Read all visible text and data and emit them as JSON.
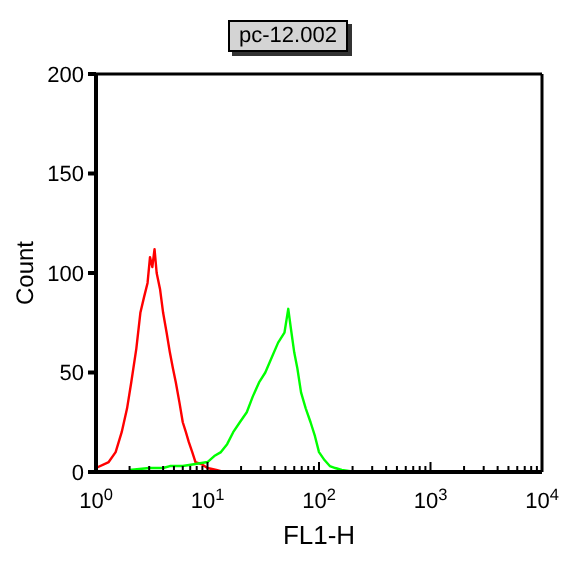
{
  "chart_data": {
    "type": "line",
    "title": "pc-12.002",
    "xlabel": "FL1-H",
    "ylabel": "Count",
    "log": "x",
    "marker": "none",
    "line_style": "solid",
    "xlim": [
      1,
      10000
    ],
    "xticks": [
      {
        "value": 1,
        "label": "10$^{0}$"
      },
      {
        "value": 2,
        "label": null
      },
      {
        "value": 3,
        "label": null
      },
      {
        "value": 4,
        "label": null
      },
      {
        "value": 5,
        "label": null
      },
      {
        "value": 6,
        "label": null
      },
      {
        "value": 7,
        "label": null
      },
      {
        "value": 8,
        "label": null
      },
      {
        "value": 9,
        "label": null
      },
      {
        "value": 10,
        "label": "10$^{1}$"
      },
      {
        "value": 20,
        "label": null
      },
      {
        "value": 30,
        "label": null
      },
      {
        "value": 40,
        "label": null
      },
      {
        "value": 50,
        "label": null
      },
      {
        "value": 60,
        "label": null
      },
      {
        "value": 70,
        "label": null
      },
      {
        "value": 80,
        "label": null
      },
      {
        "value": 90,
        "label": null
      },
      {
        "value": 100,
        "label": "10$^{2}$"
      },
      {
        "value": 200,
        "label": null
      },
      {
        "value": 300,
        "label": null
      },
      {
        "value": 400,
        "label": null
      },
      {
        "value": 500,
        "label": null
      },
      {
        "value": 600,
        "label": null
      },
      {
        "value": 700,
        "label": null
      },
      {
        "value": 800,
        "label": null
      },
      {
        "value": 900,
        "label": null
      },
      {
        "value": 1000,
        "label": "10$^{3}$"
      },
      {
        "value": 2000,
        "label": null
      },
      {
        "value": 3000,
        "label": null
      },
      {
        "value": 4000,
        "label": null
      },
      {
        "value": 5000,
        "label": null
      },
      {
        "value": 6000,
        "label": null
      },
      {
        "value": 7000,
        "label": null
      },
      {
        "value": 8000,
        "label": null
      },
      {
        "value": 9000,
        "label": null
      },
      {
        "value": 10000,
        "label": "10$^{4}$"
      }
    ],
    "ylim": [
      0,
      200
    ],
    "yticks": [
      0,
      50,
      100,
      150,
      200
    ],
    "series": [
      {
        "color": "#ff0000",
        "x": [
          1,
          1.3,
          1.5,
          1.7,
          1.9,
          2.07,
          2.3,
          2.5,
          2.7,
          2.9,
          3.05,
          3.2,
          3.35,
          3.5,
          3.75,
          4.0,
          4.3,
          4.6,
          4.9,
          5.2,
          5.6,
          6.0,
          6.4,
          6.8,
          7.3,
          7.8,
          8.8,
          10,
          12,
          14
        ],
        "values": [
          2,
          5,
          10,
          20,
          32,
          45,
          62,
          80,
          88,
          95,
          108,
          103,
          112,
          100,
          92,
          80,
          70,
          60,
          52,
          45,
          35,
          25,
          20,
          15,
          10,
          5,
          4,
          2,
          1,
          0
        ]
      },
      {
        "color": "#00ff00",
        "x": [
          2,
          3,
          4,
          4.6,
          6,
          7.8,
          10,
          11.5,
          13.2,
          15,
          17,
          19.5,
          22.5,
          25.5,
          29,
          33,
          38,
          43,
          49,
          53,
          56,
          60,
          64,
          69,
          76,
          84,
          92,
          100,
          112,
          125,
          140,
          160,
          212
        ],
        "values": [
          1,
          2,
          2,
          3,
          3,
          4,
          5,
          8,
          10,
          14,
          20,
          25,
          30,
          38,
          45,
          50,
          58,
          65,
          70,
          82,
          72,
          60,
          52,
          40,
          32,
          25,
          18,
          10,
          6,
          3,
          2,
          1,
          0
        ]
      }
    ]
  }
}
